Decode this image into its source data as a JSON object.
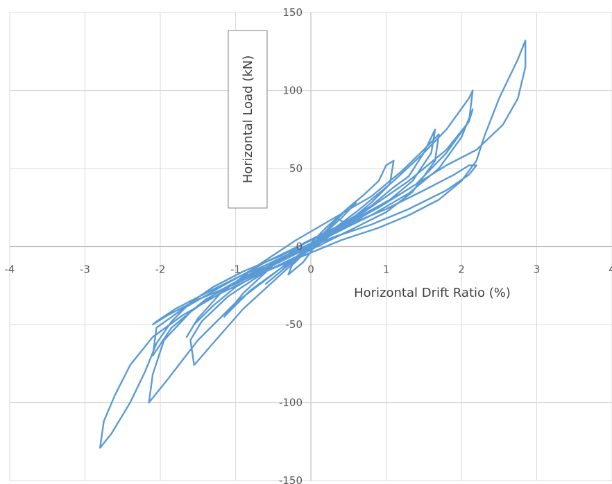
{
  "chart_data": {
    "type": "line",
    "title": "",
    "xlabel": "Horizontal Drift Ratio (%)",
    "ylabel": "Horizontal Load (kN)",
    "xlim": [
      -4,
      4
    ],
    "ylim": [
      -150,
      150
    ],
    "x_ticks": [
      -4,
      -3,
      -2,
      -1,
      0,
      1,
      2,
      3,
      4
    ],
    "y_ticks": [
      -150,
      -100,
      -50,
      0,
      50,
      100,
      150
    ],
    "x_tick_labels": [
      "-4",
      "-3",
      "-2",
      "-1",
      "0",
      "1",
      "2",
      "3",
      "4"
    ],
    "y_tick_labels": [
      "-150",
      "-100",
      "-50",
      "0",
      "50",
      "100",
      "150"
    ],
    "grid": true,
    "legend": "none",
    "series_color": "#5b9bd5",
    "series": [
      {
        "points": [
          [
            0,
            0
          ],
          [
            0.2,
            10
          ],
          [
            0.35,
            18
          ],
          [
            0.45,
            15
          ],
          [
            0.2,
            5
          ],
          [
            -0.1,
            -5
          ],
          [
            -0.25,
            -12
          ],
          [
            -0.3,
            -18
          ],
          [
            -0.1,
            -10
          ],
          [
            0.05,
            0
          ],
          [
            0.3,
            15
          ],
          [
            0.5,
            25
          ],
          [
            0.6,
            28
          ],
          [
            0.4,
            18
          ],
          [
            0.1,
            5
          ],
          [
            -0.2,
            -8
          ],
          [
            -0.5,
            -20
          ],
          [
            -0.6,
            -24
          ],
          [
            -0.4,
            -16
          ],
          [
            -0.1,
            -3
          ],
          [
            0.2,
            12
          ],
          [
            0.5,
            25
          ],
          [
            0.7,
            33
          ],
          [
            0.9,
            42
          ],
          [
            1.0,
            52
          ],
          [
            1.1,
            55
          ],
          [
            1.05,
            40
          ],
          [
            0.8,
            28
          ],
          [
            0.4,
            12
          ],
          [
            0.0,
            -2
          ],
          [
            -0.4,
            -14
          ],
          [
            -0.8,
            -28
          ],
          [
            -1.05,
            -40
          ],
          [
            -1.15,
            -45
          ],
          [
            -0.9,
            -30
          ],
          [
            -0.5,
            -12
          ],
          [
            -0.1,
            2
          ],
          [
            0.4,
            14
          ],
          [
            0.8,
            26
          ],
          [
            1.1,
            38
          ],
          [
            1.3,
            45
          ],
          [
            1.5,
            60
          ],
          [
            1.65,
            75
          ],
          [
            1.6,
            60
          ],
          [
            1.35,
            42
          ],
          [
            1.0,
            28
          ],
          [
            0.5,
            14
          ],
          [
            0.0,
            2
          ],
          [
            -0.5,
            -12
          ],
          [
            -1.0,
            -26
          ],
          [
            -1.3,
            -38
          ],
          [
            -1.55,
            -50
          ],
          [
            -1.65,
            -58
          ],
          [
            -1.5,
            -46
          ],
          [
            -1.2,
            -30
          ],
          [
            -0.7,
            -12
          ],
          [
            -0.2,
            4
          ],
          [
            0.3,
            18
          ],
          [
            0.8,
            32
          ],
          [
            1.2,
            48
          ],
          [
            1.5,
            62
          ],
          [
            1.7,
            72
          ],
          [
            1.65,
            55
          ],
          [
            1.35,
            35
          ],
          [
            1.0,
            22
          ],
          [
            0.5,
            10
          ],
          [
            0.0,
            -2
          ],
          [
            -0.6,
            -16
          ],
          [
            -1.1,
            -32
          ],
          [
            -1.45,
            -48
          ],
          [
            -1.6,
            -60
          ],
          [
            -1.55,
            -76
          ],
          [
            -1.3,
            -62
          ],
          [
            -0.9,
            -40
          ],
          [
            -0.4,
            -18
          ],
          [
            0.1,
            4
          ],
          [
            0.6,
            22
          ],
          [
            1.1,
            42
          ],
          [
            1.5,
            60
          ],
          [
            1.8,
            75
          ],
          [
            2.1,
            95
          ],
          [
            2.15,
            100
          ],
          [
            2.1,
            80
          ],
          [
            1.8,
            60
          ],
          [
            1.4,
            40
          ],
          [
            0.9,
            25
          ],
          [
            0.4,
            12
          ],
          [
            0.0,
            2
          ],
          [
            -0.6,
            -12
          ],
          [
            -1.2,
            -28
          ],
          [
            -1.6,
            -42
          ],
          [
            -1.95,
            -60
          ],
          [
            -2.1,
            -82
          ],
          [
            -2.15,
            -100
          ],
          [
            -1.9,
            -85
          ],
          [
            -1.5,
            -60
          ],
          [
            -1.0,
            -36
          ],
          [
            -0.4,
            -14
          ],
          [
            0.1,
            4
          ],
          [
            0.7,
            22
          ],
          [
            1.3,
            42
          ],
          [
            1.8,
            62
          ],
          [
            2.1,
            80
          ],
          [
            2.15,
            88
          ],
          [
            2.0,
            70
          ],
          [
            1.7,
            50
          ],
          [
            1.3,
            34
          ],
          [
            0.8,
            20
          ],
          [
            0.3,
            8
          ],
          [
            -0.2,
            -4
          ],
          [
            -0.8,
            -18
          ],
          [
            -1.4,
            -34
          ],
          [
            -1.85,
            -52
          ],
          [
            -2.1,
            -70
          ],
          [
            -2.05,
            -52
          ],
          [
            -1.7,
            -40
          ],
          [
            -1.2,
            -26
          ],
          [
            -0.6,
            -10
          ],
          [
            0.0,
            4
          ],
          [
            0.6,
            18
          ],
          [
            1.2,
            34
          ],
          [
            1.8,
            52
          ],
          [
            2.2,
            62
          ],
          [
            2.55,
            78
          ],
          [
            2.75,
            95
          ],
          [
            2.85,
            115
          ],
          [
            2.85,
            132
          ],
          [
            2.75,
            120
          ],
          [
            2.5,
            95
          ],
          [
            2.3,
            70
          ],
          [
            2.2,
            55
          ],
          [
            2.0,
            42
          ],
          [
            1.7,
            30
          ],
          [
            1.3,
            20
          ],
          [
            0.9,
            12
          ],
          [
            0.4,
            4
          ],
          [
            0.0,
            -4
          ],
          [
            -0.6,
            -16
          ],
          [
            -1.2,
            -30
          ],
          [
            -1.7,
            -44
          ],
          [
            -2.1,
            -58
          ],
          [
            -2.4,
            -76
          ],
          [
            -2.6,
            -95
          ],
          [
            -2.75,
            -112
          ],
          [
            -2.8,
            -129
          ],
          [
            -2.65,
            -120
          ],
          [
            -2.4,
            -100
          ],
          [
            -2.2,
            -80
          ],
          [
            -2.05,
            -62
          ],
          [
            -1.85,
            -48
          ],
          [
            -1.6,
            -36
          ],
          [
            -1.3,
            -26
          ],
          [
            -0.9,
            -16
          ],
          [
            -0.4,
            -6
          ],
          [
            0.0,
            4
          ],
          [
            0.5,
            14
          ],
          [
            1.0,
            24
          ],
          [
            1.5,
            36
          ],
          [
            1.9,
            46
          ],
          [
            2.1,
            52
          ],
          [
            2.2,
            52
          ],
          [
            2.1,
            46
          ],
          [
            1.8,
            36
          ],
          [
            1.3,
            24
          ],
          [
            0.8,
            14
          ],
          [
            0.3,
            6
          ],
          [
            0.0,
            0
          ],
          [
            -0.4,
            -8
          ],
          [
            -0.9,
            -18
          ],
          [
            -1.4,
            -30
          ],
          [
            -1.8,
            -40
          ],
          [
            -2.05,
            -48
          ],
          [
            -2.1,
            -50
          ],
          [
            -1.9,
            -44
          ],
          [
            -1.5,
            -34
          ],
          [
            -1.0,
            -24
          ],
          [
            -0.5,
            -12
          ],
          [
            0.0,
            0
          ]
        ]
      }
    ]
  }
}
